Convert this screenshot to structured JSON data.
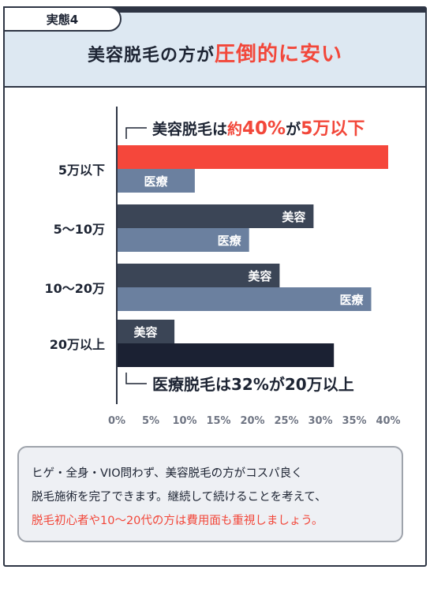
{
  "tag": "実態4",
  "headline": {
    "part1": "美容脱毛の方が",
    "part2": "圧倒的に安い"
  },
  "colors": {
    "beauty_highlight": "#f5473b",
    "beauty": "#3b4556",
    "medical": "#6b809f",
    "medical_highlight": "#1b2133",
    "accent_text": "#f2473a",
    "text": "#1d2433"
  },
  "chart_data": {
    "type": "bar",
    "orientation": "horizontal",
    "categories": [
      "5万以下",
      "5〜10万",
      "10〜20万",
      "20万以上"
    ],
    "series": [
      {
        "name": "美容",
        "values": [
          40,
          29,
          24,
          8.5
        ]
      },
      {
        "name": "医療",
        "values": [
          11.5,
          19.5,
          37.5,
          32
        ]
      }
    ],
    "bar_labels": [
      "美容",
      "医療"
    ],
    "xlim": [
      0,
      40
    ],
    "xticks": [
      "0%",
      "5%",
      "10%",
      "15%",
      "20%",
      "25%",
      "30%",
      "35%",
      "40%"
    ],
    "annotations": {
      "top": {
        "prefix": "美容脱毛は",
        "small": "約",
        "pct": "40%",
        "mid": "が",
        "range": "5万以下"
      },
      "bottom": {
        "text": "医療脱毛は32%が20万以上"
      }
    }
  },
  "callout": {
    "line1": "ヒゲ・全身・VIO問わず、美容脱毛の方がコスパ良く",
    "line2": "脱毛施術を完了できます。継続して続けることを考えて、",
    "line3": "脱毛初心者や10〜20代の方は費用面も重視しましょう。"
  }
}
